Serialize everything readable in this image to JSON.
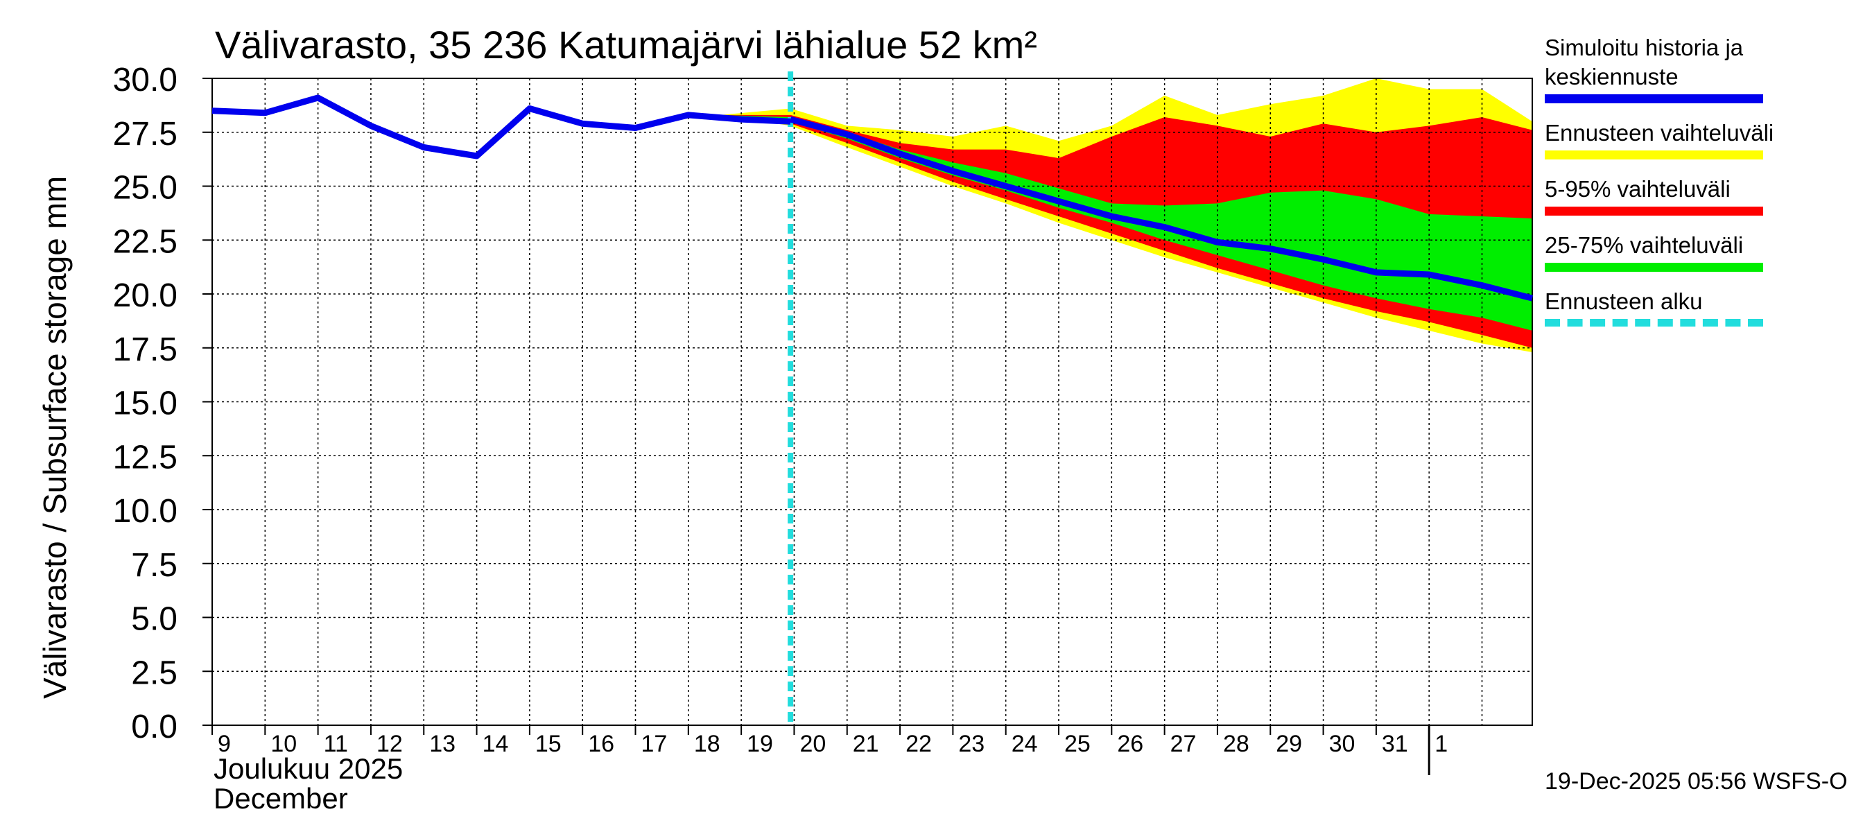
{
  "title": "Välivarasto, 35 236 Katumajärvi lähialue 52 km²",
  "footer": "19-Dec-2025 05:56 WSFS-O",
  "chart_data": {
    "type": "area",
    "title": "Välivarasto, 35 236 Katumajärvi lähialue 52 km²",
    "ylabel": "Välivarasto / Subsurface storage  mm",
    "xlabel_fi": "Joulukuu  2025",
    "xlabel_en": "December",
    "ylim": [
      0,
      30
    ],
    "yticks": [
      "0.0",
      "2.5",
      "5.0",
      "7.5",
      "10.0",
      "12.5",
      "15.0",
      "17.5",
      "20.0",
      "22.5",
      "25.0",
      "27.5",
      "30.0"
    ],
    "xticks": [
      "9",
      "10",
      "11",
      "12",
      "13",
      "14",
      "15",
      "16",
      "17",
      "18",
      "19",
      "20",
      "21",
      "22",
      "23",
      "24",
      "25",
      "26",
      "27",
      "28",
      "29",
      "30",
      "31",
      "1"
    ],
    "x_days_from_dec9": true,
    "forecast_start_day": 19.93,
    "history": {
      "x": [
        9,
        10,
        11,
        12,
        13,
        14,
        15,
        16,
        17,
        18,
        19,
        19.93
      ],
      "y": [
        28.5,
        28.4,
        29.1,
        27.8,
        26.8,
        26.4,
        28.6,
        27.9,
        27.7,
        28.3,
        28.1,
        28.0
      ]
    },
    "forecast_x": [
      18.6,
      19.93,
      21,
      22,
      23,
      24,
      25,
      26,
      27,
      28,
      29,
      30,
      31,
      32,
      33,
      33.95
    ],
    "series": [
      {
        "name": "Ennusteen vaihteluväli upper",
        "values": [
          28.3,
          28.6,
          27.8,
          27.6,
          27.3,
          27.8,
          27.1,
          27.8,
          29.2,
          28.3,
          28.8,
          29.2,
          30.0,
          29.5,
          29.5,
          28.0
        ]
      },
      {
        "name": "Ennusteen vaihteluväli lower",
        "values": [
          28.3,
          27.8,
          26.8,
          25.9,
          25.0,
          24.2,
          23.3,
          22.5,
          21.7,
          21.0,
          20.3,
          19.6,
          18.9,
          18.3,
          17.7,
          17.3
        ]
      },
      {
        "name": "5-95% upper",
        "values": [
          28.3,
          28.3,
          27.6,
          27.0,
          26.7,
          26.7,
          26.3,
          27.3,
          28.2,
          27.8,
          27.3,
          27.9,
          27.5,
          27.8,
          28.2,
          27.6
        ]
      },
      {
        "name": "5-95% lower",
        "values": [
          28.3,
          27.9,
          27.0,
          26.1,
          25.2,
          24.4,
          23.6,
          22.8,
          22.0,
          21.2,
          20.5,
          19.8,
          19.2,
          18.7,
          18.1,
          17.5
        ]
      },
      {
        "name": "25-75% upper",
        "values": [
          28.3,
          28.2,
          27.5,
          26.7,
          26.1,
          25.6,
          24.9,
          24.2,
          24.1,
          24.2,
          24.7,
          24.8,
          24.4,
          23.7,
          23.6,
          23.5
        ]
      },
      {
        "name": "25-75% lower",
        "values": [
          28.3,
          28.0,
          27.2,
          26.3,
          25.5,
          24.8,
          24.0,
          23.3,
          22.5,
          21.8,
          21.1,
          20.4,
          19.8,
          19.3,
          18.9,
          18.3
        ]
      },
      {
        "name": "Keskiennuste",
        "values": [
          28.3,
          28.1,
          27.4,
          26.5,
          25.7,
          25.0,
          24.3,
          23.6,
          23.1,
          22.4,
          22.1,
          21.6,
          21.0,
          20.9,
          20.4,
          19.8
        ]
      }
    ],
    "colors": {
      "history": "#0000ee",
      "range_full": "#ffff00",
      "range_5_95": "#ff0000",
      "range_25_75": "#00ee00",
      "forecast_start": "#22dddd",
      "grid": "#000000"
    }
  },
  "legend": [
    {
      "label": "Simuloitu historia ja keskiennuste",
      "color": "#0000ee"
    },
    {
      "label": "Ennusteen vaihteluväli",
      "color": "#ffff00"
    },
    {
      "label": "5-95% vaihteluväli",
      "color": "#ff0000"
    },
    {
      "label": "25-75% vaihteluväli",
      "color": "#00ee00"
    },
    {
      "label": "Ennusteen alku",
      "color": "#22dddd"
    }
  ]
}
